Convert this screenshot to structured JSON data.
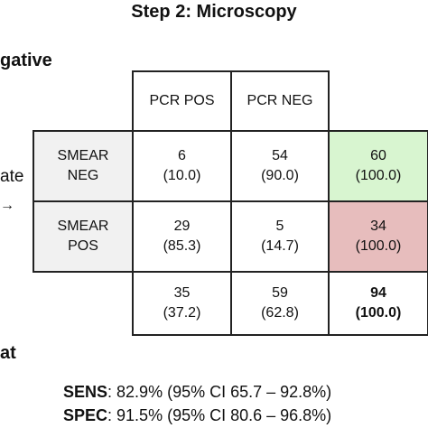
{
  "title": "Step 2: Microscopy",
  "neg_label": "gative",
  "side_label": "ate",
  "arrow": "→",
  "bottom_label": "at",
  "table": {
    "col_headers": [
      "PCR POS",
      "PCR NEG"
    ],
    "rows": [
      {
        "label_line1": "SMEAR",
        "label_line2": "NEG",
        "cells": [
          {
            "n": "6",
            "pct": "(10.0)"
          },
          {
            "n": "54",
            "pct": "(90.0)"
          }
        ],
        "total": {
          "n": "60",
          "pct": "(100.0)"
        }
      },
      {
        "label_line1": "SMEAR",
        "label_line2": "POS",
        "cells": [
          {
            "n": "29",
            "pct": "(85.3)"
          },
          {
            "n": "5",
            "pct": "(14.7)"
          }
        ],
        "total": {
          "n": "34",
          "pct": "(100.0)"
        }
      }
    ],
    "col_totals": [
      {
        "n": "35",
        "pct": "(37.2)"
      },
      {
        "n": "59",
        "pct": "(62.8)"
      }
    ],
    "grand_total": {
      "n": "94",
      "pct": "(100.0)"
    }
  },
  "stats": {
    "sens_label": "SENS",
    "sens_text": ": 82.9% (95% CI 65.7 – 92.8%)",
    "spec_label": "SPEC",
    "spec_text": ": 91.5% (95% CI 80.6 – 96.8%)"
  },
  "colors": {
    "green_cell": "#d8f5d0",
    "red_cell": "#e7bdbd",
    "row_header": "#f1f1f1"
  }
}
